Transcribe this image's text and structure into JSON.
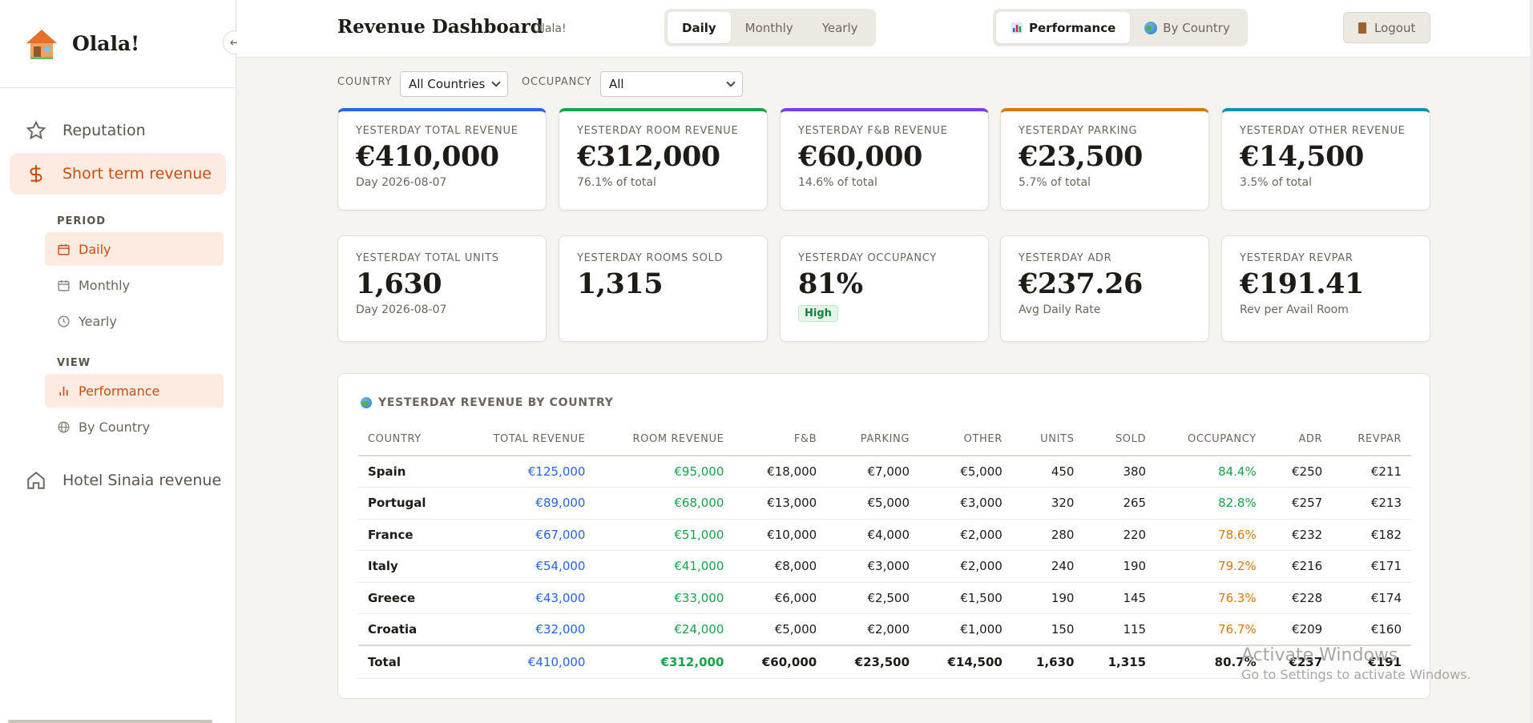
{
  "brand": {
    "name": "Olala!"
  },
  "sidebar": {
    "main_items": [
      {
        "label": "Reputation",
        "icon": "star-icon"
      },
      {
        "label": "Short term revenue",
        "icon": "dollar-icon",
        "active": true
      },
      {
        "label": "Hotel Sinaia revenue",
        "icon": "home-icon"
      }
    ],
    "period_label": "PERIOD",
    "period_items": [
      {
        "label": "Daily",
        "icon": "calendar-icon",
        "active": true
      },
      {
        "label": "Monthly",
        "icon": "calendar-icon"
      },
      {
        "label": "Yearly",
        "icon": "clock-icon"
      }
    ],
    "view_label": "VIEW",
    "view_items": [
      {
        "label": "Performance",
        "icon": "bar-chart-icon",
        "active": true
      },
      {
        "label": "By Country",
        "icon": "globe-icon"
      }
    ]
  },
  "header": {
    "title": "Revenue Dashboard",
    "subtitle": "Olala!",
    "period_tabs": [
      "Daily",
      "Monthly",
      "Yearly"
    ],
    "view_tabs": [
      "Performance",
      "By Country"
    ],
    "logout_label": "Logout"
  },
  "filters": {
    "country_label": "COUNTRY",
    "country_value": "All Countries",
    "occupancy_label": "OCCUPANCY",
    "occupancy_value": "All"
  },
  "kpi_row1": [
    {
      "label": "Yesterday Total Revenue",
      "value": "€410,000",
      "sub": "Day 2026-08-07",
      "accent": "#2563eb"
    },
    {
      "label": "Yesterday Room Revenue",
      "value": "€312,000",
      "sub": "76.1% of total",
      "accent": "#16a34a"
    },
    {
      "label": "Yesterday F&B Revenue",
      "value": "€60,000",
      "sub": "14.6% of total",
      "accent": "#7c3aed"
    },
    {
      "label": "Yesterday Parking",
      "value": "€23,500",
      "sub": "5.7% of total",
      "accent": "#d97706"
    },
    {
      "label": "Yesterday Other Revenue",
      "value": "€14,500",
      "sub": "3.5% of total",
      "accent": "#0891b2"
    }
  ],
  "kpi_row2": [
    {
      "label": "Yesterday Total Units",
      "value": "1,630",
      "sub": "Day 2026-08-07"
    },
    {
      "label": "Yesterday Rooms Sold",
      "value": "1,315",
      "sub": ""
    },
    {
      "label": "Yesterday Occupancy",
      "value": "81%",
      "badge": "High"
    },
    {
      "label": "Yesterday ADR",
      "value": "€237.26",
      "sub": "Avg Daily Rate"
    },
    {
      "label": "Yesterday RevPAR",
      "value": "€191.41",
      "sub": "Rev per Avail Room"
    }
  ],
  "table": {
    "title": "YESTERDAY REVENUE BY COUNTRY",
    "headers": [
      "COUNTRY",
      "TOTAL REVENUE",
      "ROOM REVENUE",
      "F&B",
      "PARKING",
      "OTHER",
      "UNITS",
      "SOLD",
      "OCCUPANCY",
      "ADR",
      "REVPAR"
    ],
    "rows": [
      [
        "Spain",
        "€125,000",
        "€95,000",
        "€18,000",
        "€7,000",
        "€5,000",
        "450",
        "380",
        "84.4%",
        "€250",
        "€211"
      ],
      [
        "Portugal",
        "€89,000",
        "€68,000",
        "€13,000",
        "€5,000",
        "€3,000",
        "320",
        "265",
        "82.8%",
        "€257",
        "€213"
      ],
      [
        "France",
        "€67,000",
        "€51,000",
        "€10,000",
        "€4,000",
        "€2,000",
        "280",
        "220",
        "78.6%",
        "€232",
        "€182"
      ],
      [
        "Italy",
        "€54,000",
        "€41,000",
        "€8,000",
        "€3,000",
        "€2,000",
        "240",
        "190",
        "79.2%",
        "€216",
        "€171"
      ],
      [
        "Greece",
        "€43,000",
        "€33,000",
        "€6,000",
        "€2,500",
        "€1,500",
        "190",
        "145",
        "76.3%",
        "€228",
        "€174"
      ],
      [
        "Croatia",
        "€32,000",
        "€24,000",
        "€5,000",
        "€2,000",
        "€1,000",
        "150",
        "115",
        "76.7%",
        "€209",
        "€160"
      ]
    ],
    "occupancy_colors": [
      "green",
      "green",
      "orange",
      "orange",
      "orange",
      "orange"
    ],
    "total": [
      "Total",
      "€410,000",
      "€312,000",
      "€60,000",
      "€23,500",
      "€14,500",
      "1,630",
      "1,315",
      "80.7%",
      "€237",
      "€191"
    ]
  },
  "watermark": {
    "line1": "Activate Windows",
    "line2": "Go to Settings to activate Windows."
  }
}
